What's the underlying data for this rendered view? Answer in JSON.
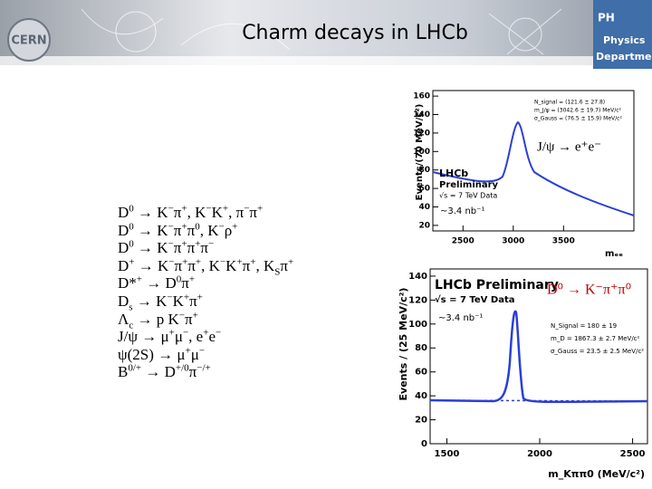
{
  "header": {
    "logo": "CERN",
    "title": "Charm decays in LHCb",
    "dept": [
      "PH",
      "Physics",
      "Department"
    ]
  },
  "decays": [
    [
      "D",
      {
        "sup": "0"
      },
      " → K",
      {
        "sup": "−"
      },
      "π",
      {
        "sup": "+"
      },
      ", K",
      {
        "sup": "−"
      },
      "K",
      {
        "sup": "+"
      },
      ", π",
      {
        "sup": "−"
      },
      "π",
      {
        "sup": "+"
      }
    ],
    [
      "D",
      {
        "sup": "0"
      },
      " → K",
      {
        "sup": "−"
      },
      "π",
      {
        "sup": "+"
      },
      "π",
      {
        "sup": "0"
      },
      ", K",
      {
        "sup": "−"
      },
      "ρ",
      {
        "sup": "+"
      }
    ],
    [
      "D",
      {
        "sup": "0"
      },
      " → K",
      {
        "sup": "−"
      },
      "π",
      {
        "sup": "+"
      },
      "π",
      {
        "sup": "+"
      },
      "π",
      {
        "sup": "−"
      }
    ],
    [
      "D",
      {
        "sup": "+"
      },
      " → K",
      {
        "sup": "−"
      },
      "π",
      {
        "sup": "+"
      },
      "π",
      {
        "sup": "+"
      },
      ", K",
      {
        "sup": "−"
      },
      "K",
      {
        "sup": "+"
      },
      "π",
      {
        "sup": "+"
      },
      ", K",
      {
        "sub": "S"
      },
      "π",
      {
        "sup": "+"
      }
    ],
    [
      "D*",
      {
        "sup": "+"
      },
      " → D",
      {
        "sup": "0"
      },
      "π",
      {
        "sup": "+"
      }
    ],
    [
      "D",
      {
        "sub": "s"
      },
      " → K",
      {
        "sup": "−"
      },
      "K",
      {
        "sup": "+"
      },
      "π",
      {
        "sup": "+"
      }
    ],
    [
      "Λ",
      {
        "sub": "c"
      },
      " → p K",
      {
        "sup": "−"
      },
      "π",
      {
        "sup": "+"
      }
    ],
    [
      "J/ψ → μ",
      {
        "sup": "+"
      },
      "μ",
      {
        "sup": "−"
      },
      ", e",
      {
        "sup": "+"
      },
      "e",
      {
        "sup": "−"
      }
    ],
    [
      "ψ(2S) → μ",
      {
        "sup": "+"
      },
      "μ",
      {
        "sup": "−"
      }
    ],
    [
      "B",
      {
        "sup": "0/+"
      },
      " → D",
      {
        "sup": "+/0"
      },
      "π",
      {
        "sup": "−/+"
      }
    ]
  ],
  "plots": [
    {
      "ylabel": "Events/(70 MeV/c²)",
      "xlabel": "mₑₑ",
      "xlim": [
        2200,
        4200
      ],
      "ylim": [
        14,
        166
      ],
      "xticks": [
        2500,
        3000,
        3500
      ],
      "yticks": [
        20,
        40,
        60,
        80,
        100,
        120,
        140,
        160
      ],
      "legend": [
        "LHCb",
        "Preliminary",
        "√s = 7 TeV Data"
      ],
      "stats": [
        "N_signal = (121.6 ± 27.8)",
        "m_J/ψ = (3042.6 ± 19.7) MeV/c²",
        "σ_Gauss = (76.5 ± 15.9) MeV/c²"
      ],
      "annotation": "J/ψ → e⁺e⁻",
      "lumi": "~3.4 nb⁻¹"
    },
    {
      "ylabel": "Events / (25 MeV/c²)",
      "xlabel": "m_Kππ0 (MeV/c²)",
      "xlim": [
        1410,
        2580
      ],
      "ylim": [
        0,
        146
      ],
      "xticks": [
        1500,
        2000,
        2500
      ],
      "yticks": [
        0,
        20,
        40,
        60,
        80,
        100,
        120,
        140
      ],
      "legend": [
        "LHCb Preliminary",
        "√s = 7 TeV Data"
      ],
      "stats": [
        "N_Signal = 180 ± 19",
        "m_D = 1867.3 ± 2.7 MeV/c²",
        "σ_Gauss = 23.5 ± 2.5 MeV/c²"
      ],
      "annotation": "D⁰ → K⁻π⁺π⁰",
      "lumi": "~3.4 nb⁻¹"
    }
  ]
}
